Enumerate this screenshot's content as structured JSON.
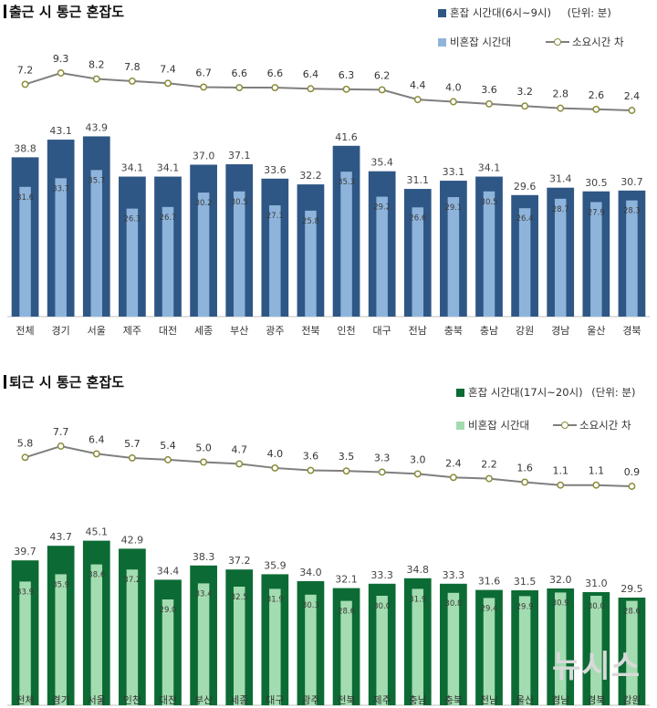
{
  "unit_label": "(단위: 분)",
  "watermark": "뉴시스",
  "colors": {
    "morning_peak": "#2f5785",
    "morning_offpeak": "#8fb4db",
    "evening_peak": "#0c6b34",
    "evening_offpeak": "#a3dcb0",
    "diff_line": "#7f7f7f",
    "diff_marker": "#8a8a3a"
  },
  "chart_data": [
    {
      "type": "bar",
      "title": "출근 시 통근 혼잡도",
      "legend": [
        {
          "name": "혼잡 시간대(6시~9시)"
        },
        {
          "name": "비혼잡 시간대"
        },
        {
          "name": "소요시간 차"
        }
      ],
      "categories": [
        "전체",
        "경기",
        "서울",
        "제주",
        "대전",
        "세종",
        "부산",
        "광주",
        "전북",
        "인천",
        "대구",
        "전남",
        "충북",
        "충남",
        "강원",
        "경남",
        "울산",
        "경북"
      ],
      "series": [
        {
          "name": "혼잡 시간대(6시~9시)",
          "values": [
            38.8,
            43.1,
            43.9,
            34.1,
            34.1,
            37.0,
            37.1,
            33.6,
            32.2,
            41.6,
            35.4,
            31.1,
            33.1,
            34.1,
            29.6,
            31.4,
            30.5,
            30.7
          ]
        },
        {
          "name": "비혼잡 시간대",
          "values": [
            31.6,
            33.7,
            35.7,
            26.3,
            26.7,
            30.2,
            30.5,
            27.1,
            25.8,
            35.3,
            29.2,
            26.6,
            29.1,
            30.5,
            26.4,
            28.7,
            27.9,
            28.3
          ]
        },
        {
          "name": "소요시간 차",
          "values": [
            7.2,
            9.3,
            8.2,
            7.8,
            7.4,
            6.7,
            6.6,
            6.6,
            6.4,
            6.3,
            6.2,
            4.4,
            4.0,
            3.6,
            3.2,
            2.8,
            2.6,
            2.4
          ]
        }
      ]
    },
    {
      "type": "bar",
      "title": "퇴근 시 통근 혼잡도",
      "legend": [
        {
          "name": "혼잡 시간대(17시~20시)"
        },
        {
          "name": "비혼잡 시간대"
        },
        {
          "name": "소요시간 차"
        }
      ],
      "categories": [
        "전체",
        "경기",
        "서울",
        "인천",
        "대전",
        "부산",
        "세종",
        "대구",
        "광주",
        "전북",
        "제주",
        "충남",
        "충북",
        "전남",
        "울산",
        "경남",
        "경북",
        "강원"
      ],
      "series": [
        {
          "name": "혼잡 시간대(17시~20시)",
          "values": [
            39.7,
            43.7,
            45.1,
            42.9,
            34.4,
            38.3,
            37.2,
            35.9,
            34.0,
            32.1,
            33.3,
            34.8,
            33.3,
            31.6,
            31.5,
            32.0,
            31.0,
            29.5
          ]
        },
        {
          "name": "비혼잡 시간대",
          "values": [
            33.9,
            35.9,
            38.6,
            37.2,
            29.0,
            33.4,
            32.5,
            31.9,
            30.3,
            28.6,
            30.0,
            31.9,
            30.8,
            29.4,
            29.9,
            30.9,
            30.0,
            28.6
          ]
        },
        {
          "name": "소요시간 차",
          "values": [
            5.8,
            7.7,
            6.4,
            5.7,
            5.4,
            5.0,
            4.7,
            4.0,
            3.6,
            3.5,
            3.3,
            3.0,
            2.4,
            2.2,
            1.6,
            1.1,
            1.1,
            0.9
          ]
        }
      ]
    }
  ]
}
